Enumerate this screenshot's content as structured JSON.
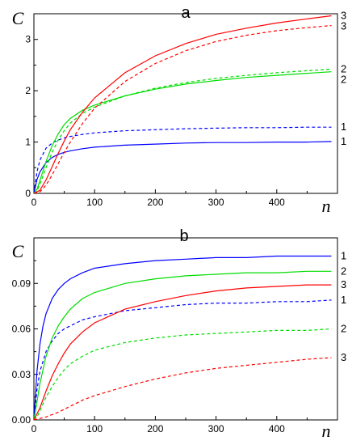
{
  "chart_data": [
    {
      "type": "line",
      "panel_label": "a",
      "ylabel": "C",
      "xlabel": "n",
      "xlim": [
        0,
        500
      ],
      "ylim": [
        0,
        3.5
      ],
      "xticks": [
        0,
        100,
        200,
        300,
        400
      ],
      "xtick_labels": [
        "0",
        "100",
        "200",
        "300",
        "400"
      ],
      "yticks": [
        0,
        1,
        2,
        3
      ],
      "ytick_labels": [
        "0",
        "1",
        "2",
        "3"
      ],
      "grid": false,
      "legend": "none (curves numbered at right end)",
      "series": [
        {
          "label": "1",
          "style": "solid",
          "color": "#0000ff",
          "x": [
            0,
            5,
            10,
            20,
            30,
            40,
            50,
            60,
            80,
            100,
            150,
            200,
            250,
            300,
            350,
            400,
            450,
            490
          ],
          "y": [
            0,
            0.27,
            0.42,
            0.6,
            0.7,
            0.76,
            0.8,
            0.83,
            0.87,
            0.9,
            0.94,
            0.96,
            0.98,
            0.99,
            0.99,
            1.0,
            1.0,
            1.01
          ]
        },
        {
          "label": "1",
          "style": "dashed",
          "color": "#0000ff",
          "x": [
            0,
            5,
            10,
            20,
            30,
            40,
            50,
            60,
            80,
            100,
            150,
            200,
            250,
            300,
            350,
            400,
            450,
            490
          ],
          "y": [
            0,
            0.42,
            0.65,
            0.88,
            0.98,
            1.04,
            1.08,
            1.11,
            1.15,
            1.18,
            1.22,
            1.24,
            1.26,
            1.27,
            1.28,
            1.28,
            1.29,
            1.29
          ]
        },
        {
          "label": "2",
          "style": "solid",
          "color": "#00dd00",
          "x": [
            0,
            5,
            10,
            20,
            30,
            40,
            50,
            60,
            80,
            100,
            150,
            200,
            250,
            300,
            350,
            400,
            450,
            490
          ],
          "y": [
            0,
            0.08,
            0.25,
            0.62,
            0.93,
            1.16,
            1.34,
            1.46,
            1.62,
            1.72,
            1.9,
            2.03,
            2.13,
            2.2,
            2.26,
            2.3,
            2.34,
            2.37
          ]
        },
        {
          "label": "2",
          "style": "dashed",
          "color": "#00dd00",
          "x": [
            0,
            5,
            10,
            20,
            30,
            40,
            50,
            60,
            80,
            100,
            150,
            200,
            250,
            300,
            350,
            400,
            450,
            490
          ],
          "y": [
            0,
            0.05,
            0.18,
            0.5,
            0.8,
            1.04,
            1.22,
            1.37,
            1.56,
            1.68,
            1.9,
            2.05,
            2.16,
            2.24,
            2.3,
            2.35,
            2.39,
            2.42
          ]
        },
        {
          "label": "3",
          "style": "solid",
          "color": "#ff0000",
          "x": [
            0,
            10,
            20,
            30,
            40,
            50,
            60,
            80,
            100,
            150,
            200,
            250,
            300,
            350,
            400,
            450,
            490
          ],
          "y": [
            0,
            0.06,
            0.26,
            0.52,
            0.78,
            1.02,
            1.24,
            1.58,
            1.86,
            2.35,
            2.68,
            2.92,
            3.1,
            3.22,
            3.32,
            3.4,
            3.46
          ]
        },
        {
          "label": "3",
          "style": "dashed",
          "color": "#ff0000",
          "x": [
            0,
            10,
            20,
            30,
            40,
            50,
            60,
            80,
            100,
            150,
            200,
            250,
            300,
            350,
            400,
            450,
            490
          ],
          "y": [
            0,
            0.03,
            0.16,
            0.36,
            0.58,
            0.8,
            1.0,
            1.36,
            1.66,
            2.18,
            2.53,
            2.78,
            2.96,
            3.08,
            3.17,
            3.23,
            3.27
          ]
        }
      ]
    },
    {
      "type": "line",
      "panel_label": "b",
      "ylabel": "C",
      "xlabel": "n",
      "xlim": [
        0,
        500
      ],
      "ylim": [
        0,
        0.12
      ],
      "xticks": [
        0,
        100,
        200,
        300,
        400
      ],
      "xtick_labels": [
        "0",
        "100",
        "200",
        "300",
        "400"
      ],
      "yticks": [
        0,
        0.03,
        0.06,
        0.09
      ],
      "ytick_labels": [
        "0.00",
        "0.03",
        "0.06",
        "0.09"
      ],
      "grid": false,
      "legend": "none (curves numbered at right end)",
      "series": [
        {
          "label": "1",
          "style": "solid",
          "color": "#0000ff",
          "x": [
            0,
            5,
            10,
            15,
            20,
            30,
            40,
            50,
            60,
            80,
            100,
            150,
            200,
            250,
            300,
            350,
            400,
            450,
            490
          ],
          "y": [
            0,
            0.032,
            0.05,
            0.062,
            0.07,
            0.08,
            0.086,
            0.09,
            0.093,
            0.097,
            0.1,
            0.103,
            0.105,
            0.106,
            0.107,
            0.107,
            0.108,
            0.108,
            0.108
          ]
        },
        {
          "label": "1",
          "style": "dashed",
          "color": "#0000ff",
          "x": [
            0,
            5,
            10,
            20,
            30,
            40,
            50,
            60,
            80,
            100,
            150,
            200,
            250,
            300,
            350,
            400,
            450,
            490
          ],
          "y": [
            0,
            0.02,
            0.032,
            0.045,
            0.052,
            0.057,
            0.06,
            0.062,
            0.066,
            0.068,
            0.072,
            0.074,
            0.076,
            0.077,
            0.077,
            0.078,
            0.078,
            0.079
          ]
        },
        {
          "label": "2",
          "style": "solid",
          "color": "#00dd00",
          "x": [
            0,
            5,
            10,
            20,
            30,
            40,
            50,
            60,
            80,
            100,
            150,
            200,
            250,
            300,
            350,
            400,
            450,
            490
          ],
          "y": [
            0,
            0.012,
            0.024,
            0.042,
            0.054,
            0.062,
            0.068,
            0.073,
            0.08,
            0.084,
            0.09,
            0.093,
            0.095,
            0.096,
            0.097,
            0.097,
            0.098,
            0.098
          ]
        },
        {
          "label": "2",
          "style": "dashed",
          "color": "#00dd00",
          "x": [
            0,
            5,
            10,
            20,
            30,
            40,
            50,
            60,
            80,
            100,
            150,
            200,
            250,
            300,
            350,
            400,
            450,
            490
          ],
          "y": [
            0,
            0.002,
            0.006,
            0.015,
            0.022,
            0.028,
            0.033,
            0.037,
            0.042,
            0.046,
            0.051,
            0.054,
            0.056,
            0.057,
            0.058,
            0.059,
            0.059,
            0.06
          ]
        },
        {
          "label": "3",
          "style": "solid",
          "color": "#ff0000",
          "x": [
            0,
            10,
            20,
            30,
            40,
            50,
            60,
            80,
            100,
            150,
            200,
            250,
            300,
            350,
            400,
            450,
            490
          ],
          "y": [
            0,
            0.008,
            0.019,
            0.029,
            0.037,
            0.044,
            0.05,
            0.058,
            0.064,
            0.073,
            0.078,
            0.082,
            0.085,
            0.087,
            0.088,
            0.089,
            0.089
          ]
        },
        {
          "label": "3",
          "style": "dashed",
          "color": "#ff0000",
          "x": [
            0,
            20,
            40,
            60,
            80,
            100,
            150,
            200,
            250,
            300,
            350,
            400,
            450,
            490
          ],
          "y": [
            0,
            0.002,
            0.005,
            0.009,
            0.013,
            0.016,
            0.022,
            0.027,
            0.031,
            0.034,
            0.036,
            0.038,
            0.04,
            0.041
          ]
        }
      ]
    }
  ]
}
